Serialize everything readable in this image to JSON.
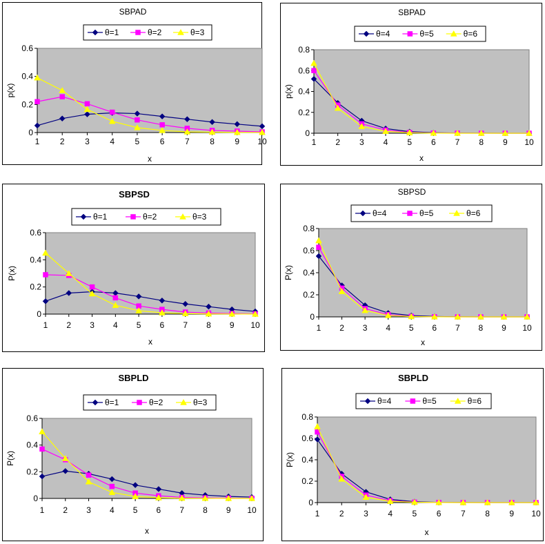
{
  "figure": {
    "background": "#ffffff",
    "plot_area_color": "#c0c0c0"
  },
  "colors": {
    "series1": "#000080",
    "series2": "#ff00ff",
    "series3": "#ffff00"
  },
  "chart_data": [
    {
      "type": "line",
      "title": "SBPAD",
      "title_bold": false,
      "xlabel": "x",
      "ylabel": "p(x)",
      "x": [
        1,
        2,
        3,
        4,
        5,
        6,
        7,
        8,
        9,
        10
      ],
      "xticks": [
        "1",
        "2",
        "3",
        "4",
        "5",
        "6",
        "7",
        "8",
        "9",
        "10"
      ],
      "ylim": [
        0,
        0.6
      ],
      "yticks": [
        "0",
        "0.2",
        "0.4",
        "0.6"
      ],
      "series": [
        {
          "name": "θ=1",
          "marker": "diamond",
          "values": [
            0.05,
            0.1,
            0.13,
            0.14,
            0.135,
            0.115,
            0.095,
            0.075,
            0.06,
            0.045
          ]
        },
        {
          "name": "θ=2",
          "marker": "square",
          "values": [
            0.22,
            0.255,
            0.205,
            0.145,
            0.09,
            0.055,
            0.03,
            0.015,
            0.01,
            0.005
          ]
        },
        {
          "name": "θ=3",
          "marker": "triangle",
          "values": [
            0.39,
            0.3,
            0.165,
            0.08,
            0.035,
            0.015,
            0.005,
            0.003,
            0.001,
            0.001
          ]
        }
      ]
    },
    {
      "type": "line",
      "title": "SBPAD",
      "title_bold": false,
      "xlabel": "x",
      "ylabel": "p(x)",
      "x": [
        1,
        2,
        3,
        4,
        5,
        6,
        7,
        8,
        9,
        10
      ],
      "xticks": [
        "1",
        "2",
        "3",
        "4",
        "5",
        "6",
        "7",
        "8",
        "9",
        "10"
      ],
      "ylim": [
        0,
        0.8
      ],
      "yticks": [
        "0",
        "0.2",
        "0.4",
        "0.6",
        "0.8"
      ],
      "series": [
        {
          "name": "θ=4",
          "marker": "diamond",
          "values": [
            0.52,
            0.29,
            0.12,
            0.045,
            0.015,
            0.005,
            0.002,
            0.001,
            0,
            0
          ]
        },
        {
          "name": "θ=5",
          "marker": "square",
          "values": [
            0.6,
            0.27,
            0.09,
            0.03,
            0.008,
            0.002,
            0.001,
            0,
            0,
            0
          ]
        },
        {
          "name": "θ=6",
          "marker": "triangle",
          "values": [
            0.67,
            0.24,
            0.065,
            0.018,
            0.005,
            0.001,
            0,
            0,
            0,
            0
          ]
        }
      ]
    },
    {
      "type": "line",
      "title": "SBPSD",
      "title_bold": true,
      "xlabel": "x",
      "ylabel": "P(x)",
      "x": [
        1,
        2,
        3,
        4,
        5,
        6,
        7,
        8,
        9,
        10
      ],
      "xticks": [
        "1",
        "2",
        "3",
        "4",
        "5",
        "6",
        "7",
        "8",
        "9",
        "10"
      ],
      "ylim": [
        0,
        0.6
      ],
      "yticks": [
        "0",
        "0.2",
        "0.4",
        "0.6"
      ],
      "series": [
        {
          "name": "θ=1",
          "marker": "diamond",
          "values": [
            0.095,
            0.155,
            0.165,
            0.155,
            0.13,
            0.1,
            0.075,
            0.055,
            0.035,
            0.02
          ]
        },
        {
          "name": "θ=2",
          "marker": "square",
          "values": [
            0.29,
            0.285,
            0.2,
            0.12,
            0.06,
            0.035,
            0.015,
            0.008,
            0.004,
            0.002
          ]
        },
        {
          "name": "θ=3",
          "marker": "triangle",
          "values": [
            0.45,
            0.3,
            0.15,
            0.065,
            0.025,
            0.01,
            0.004,
            0.002,
            0.001,
            0
          ]
        }
      ]
    },
    {
      "type": "line",
      "title": "SBPSD",
      "title_bold": false,
      "xlabel": "x",
      "ylabel": "P(x)",
      "x": [
        1,
        2,
        3,
        4,
        5,
        6,
        7,
        8,
        9,
        10
      ],
      "xticks": [
        "1",
        "2",
        "3",
        "4",
        "5",
        "6",
        "7",
        "8",
        "9",
        "10"
      ],
      "ylim": [
        0,
        0.8
      ],
      "yticks": [
        "0",
        "0.2",
        "0.4",
        "0.6",
        "0.8"
      ],
      "series": [
        {
          "name": "θ=4",
          "marker": "diamond",
          "values": [
            0.55,
            0.285,
            0.105,
            0.035,
            0.012,
            0.004,
            0.001,
            0,
            0,
            0
          ]
        },
        {
          "name": "θ=5",
          "marker": "square",
          "values": [
            0.63,
            0.26,
            0.075,
            0.02,
            0.005,
            0.001,
            0,
            0,
            0,
            0
          ]
        },
        {
          "name": "θ=6",
          "marker": "triangle",
          "values": [
            0.69,
            0.23,
            0.058,
            0.013,
            0.003,
            0.001,
            0,
            0,
            0,
            0
          ]
        }
      ]
    },
    {
      "type": "line",
      "title": "SBPLD",
      "title_bold": true,
      "xlabel": "x",
      "ylabel": "P(x)",
      "x": [
        1,
        2,
        3,
        4,
        5,
        6,
        7,
        8,
        9,
        10
      ],
      "xticks": [
        "1",
        "2",
        "3",
        "4",
        "5",
        "6",
        "7",
        "8",
        "9",
        "10"
      ],
      "ylim": [
        0,
        0.6
      ],
      "yticks": [
        "0",
        "0.2",
        "0.4",
        "0.6"
      ],
      "series": [
        {
          "name": "θ=1",
          "marker": "diamond",
          "values": [
            0.165,
            0.205,
            0.185,
            0.145,
            0.1,
            0.07,
            0.04,
            0.025,
            0.015,
            0.01
          ]
        },
        {
          "name": "θ=2",
          "marker": "square",
          "values": [
            0.37,
            0.29,
            0.175,
            0.09,
            0.04,
            0.02,
            0.008,
            0.004,
            0.002,
            0.001
          ]
        },
        {
          "name": "θ=3",
          "marker": "triangle",
          "values": [
            0.5,
            0.3,
            0.125,
            0.045,
            0.015,
            0.005,
            0.002,
            0.001,
            0,
            0
          ]
        }
      ]
    },
    {
      "type": "line",
      "title": "SBPLD",
      "title_bold": true,
      "xlabel": "x",
      "ylabel": "P(x)",
      "x": [
        1,
        2,
        3,
        4,
        5,
        6,
        7,
        8,
        9,
        10
      ],
      "xticks": [
        "1",
        "2",
        "3",
        "4",
        "5",
        "6",
        "7",
        "8",
        "9",
        "10"
      ],
      "ylim": [
        0,
        0.8
      ],
      "yticks": [
        "0",
        "0.2",
        "0.4",
        "0.6",
        "0.8"
      ],
      "series": [
        {
          "name": "θ=4",
          "marker": "diamond",
          "values": [
            0.59,
            0.27,
            0.1,
            0.03,
            0.008,
            0.002,
            0.001,
            0,
            0,
            0
          ]
        },
        {
          "name": "θ=5",
          "marker": "square",
          "values": [
            0.66,
            0.245,
            0.07,
            0.018,
            0.004,
            0.001,
            0,
            0,
            0,
            0
          ]
        },
        {
          "name": "θ=6",
          "marker": "triangle",
          "values": [
            0.71,
            0.22,
            0.05,
            0.012,
            0.003,
            0.001,
            0,
            0,
            0,
            0
          ]
        }
      ]
    }
  ]
}
